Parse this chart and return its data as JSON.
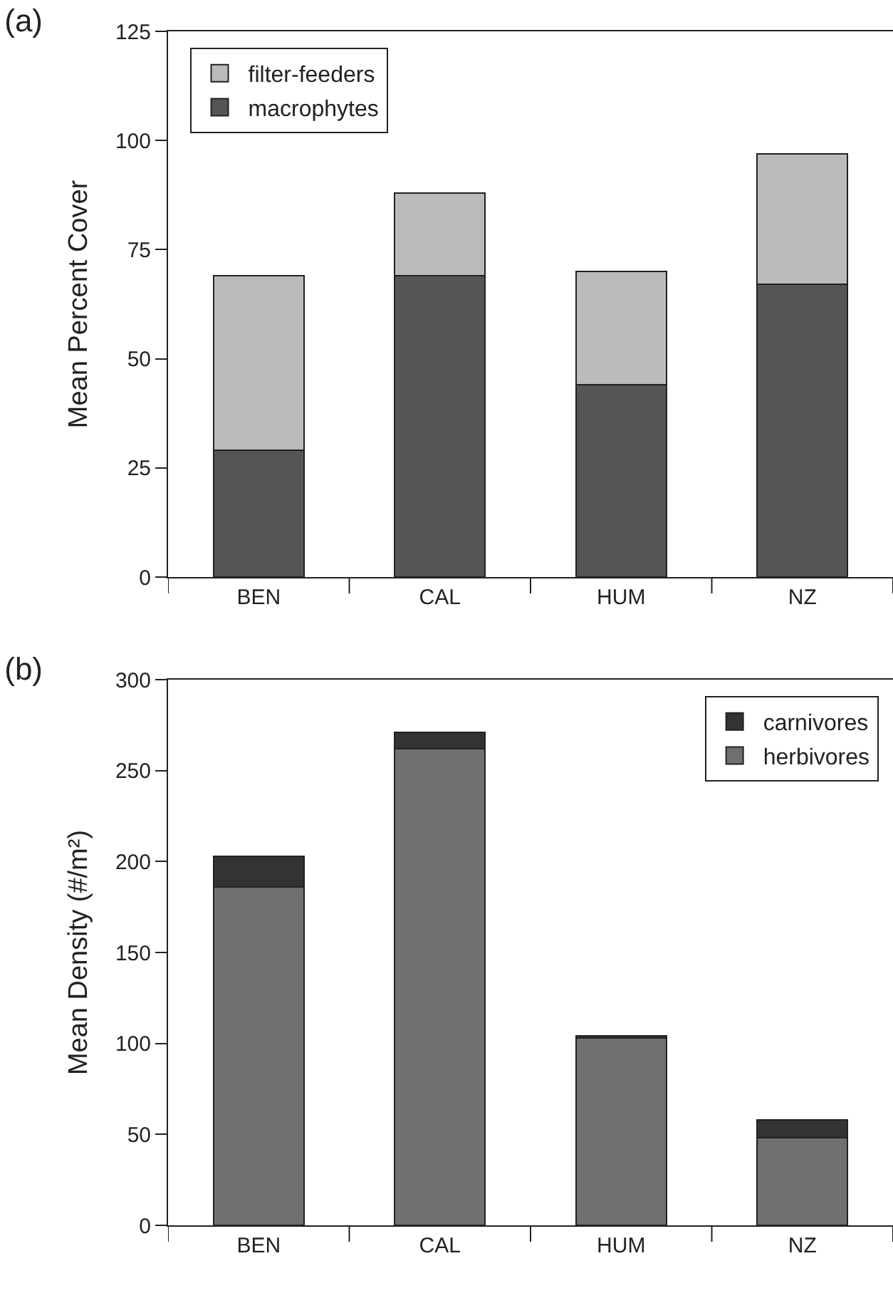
{
  "chart_data": [
    {
      "type": "bar",
      "title": "(a)",
      "ylabel": "Mean Percent Cover",
      "categories": [
        "BEN",
        "CAL",
        "HUM",
        "NZ"
      ],
      "stacked": true,
      "series": [
        {
          "name": "macrophytes",
          "color": "#555555",
          "values": [
            29,
            69,
            44,
            67
          ]
        },
        {
          "name": "filter-feeders",
          "color": "#bbbbbb",
          "values": [
            40,
            19,
            26,
            30
          ]
        }
      ],
      "ylim": [
        0,
        125
      ],
      "yticks": [
        0,
        25,
        50,
        75,
        100,
        125
      ],
      "legend": "top left"
    },
    {
      "type": "bar",
      "title": "(b)",
      "ylabel": "Mean Density (#/m²)",
      "categories": [
        "BEN",
        "CAL",
        "HUM",
        "NZ"
      ],
      "stacked": true,
      "series": [
        {
          "name": "herbivores",
          "color": "#707070",
          "values": [
            186,
            262,
            103,
            48
          ]
        },
        {
          "name": "carnivores",
          "color": "#333333",
          "values": [
            17,
            9,
            1,
            10
          ]
        }
      ],
      "ylim": [
        0,
        300
      ],
      "yticks": [
        0,
        50,
        100,
        150,
        200,
        250,
        300
      ],
      "legend": "top right"
    }
  ]
}
